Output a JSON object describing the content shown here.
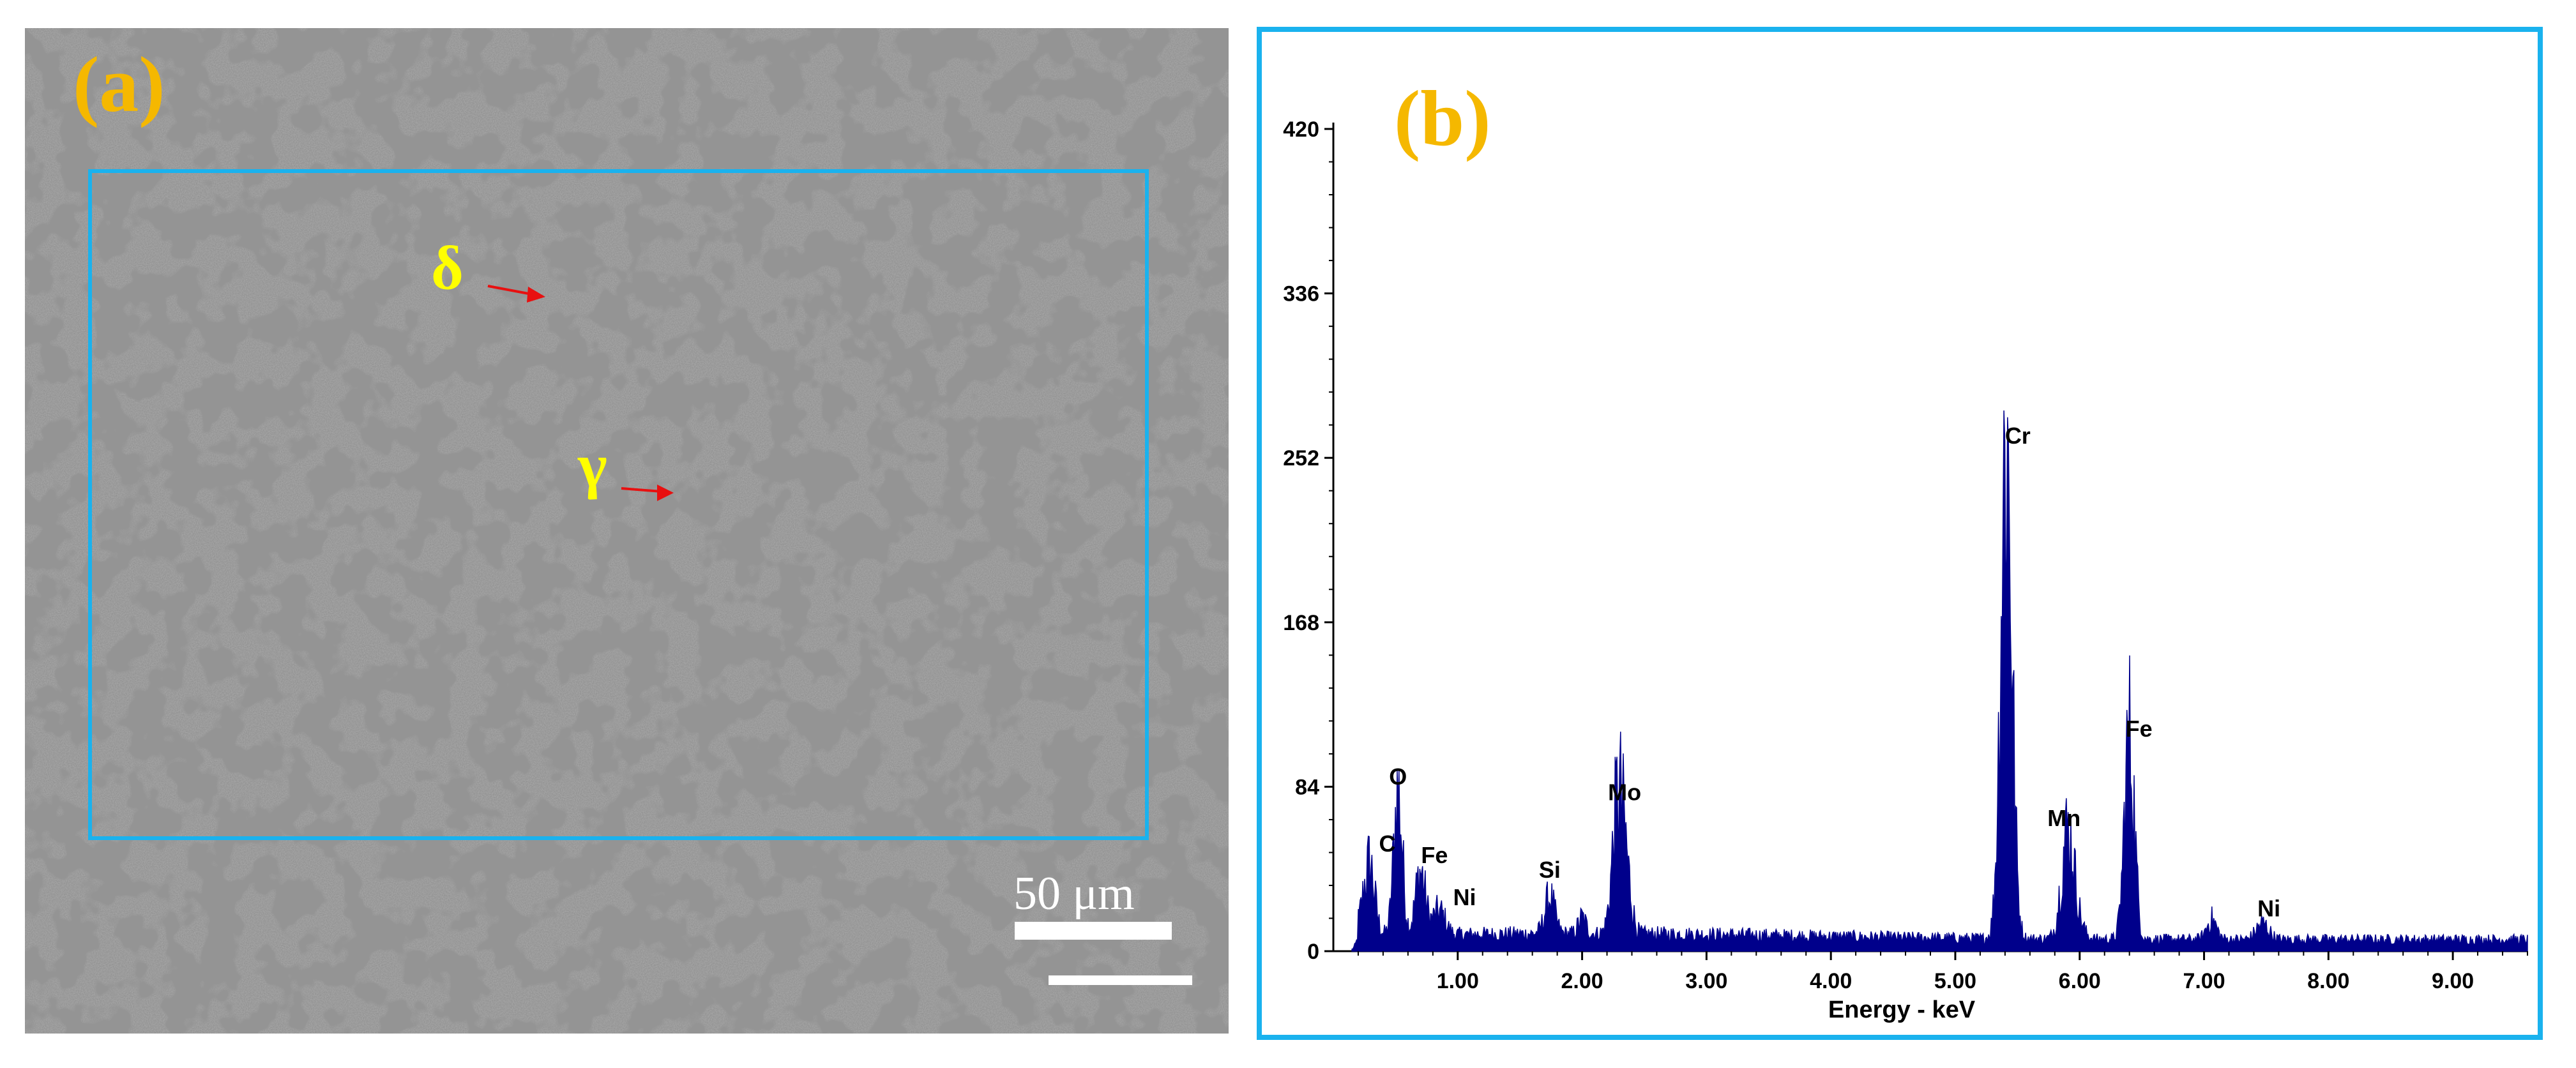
{
  "colors": {
    "frame": "#1ab2ee",
    "panel_label": "#f5b800",
    "phase_label": "#ffff00",
    "arrow": "#e81010",
    "spectrum": "#00008b",
    "micrograph_bg": "#8c8c8c",
    "grain_boundary": "#4e4e4e"
  },
  "panel_a": {
    "label": "(a)",
    "delta_label": "δ",
    "gamma_label": "γ",
    "scale_bar_text": "50 μm"
  },
  "panel_b": {
    "label": "(b)"
  },
  "chart_data": {
    "type": "area",
    "xlabel": "Energy - keV",
    "ylabel": "",
    "xlim": [
      0,
      9.6
    ],
    "ylim": [
      0,
      420
    ],
    "y_ticks": [
      "0",
      "84",
      "168",
      "252",
      "336",
      "420"
    ],
    "x_ticks": [
      "1.00",
      "2.00",
      "3.00",
      "4.00",
      "5.00",
      "6.00",
      "7.00",
      "8.00",
      "9.00"
    ],
    "grid": false,
    "peaks": [
      {
        "label": "C",
        "energy": 0.28,
        "counts": 28
      },
      {
        "label": "O",
        "energy": 0.52,
        "counts": 72
      },
      {
        "label": "Fe",
        "energy": 0.7,
        "counts": 32
      },
      {
        "label": "Ni",
        "energy": 0.85,
        "counts": 12
      },
      {
        "label": "Si",
        "energy": 1.74,
        "counts": 18
      },
      {
        "label": "Mo",
        "energy": 2.29,
        "counts": 68
      },
      {
        "label": "Cr",
        "energy": 5.41,
        "counts": 252
      },
      {
        "label": "Mn",
        "energy": 5.9,
        "counts": 46
      },
      {
        "label": "Fe",
        "energy": 6.4,
        "counts": 103
      },
      {
        "label": "Ni",
        "energy": 7.47,
        "counts": 8
      }
    ]
  }
}
